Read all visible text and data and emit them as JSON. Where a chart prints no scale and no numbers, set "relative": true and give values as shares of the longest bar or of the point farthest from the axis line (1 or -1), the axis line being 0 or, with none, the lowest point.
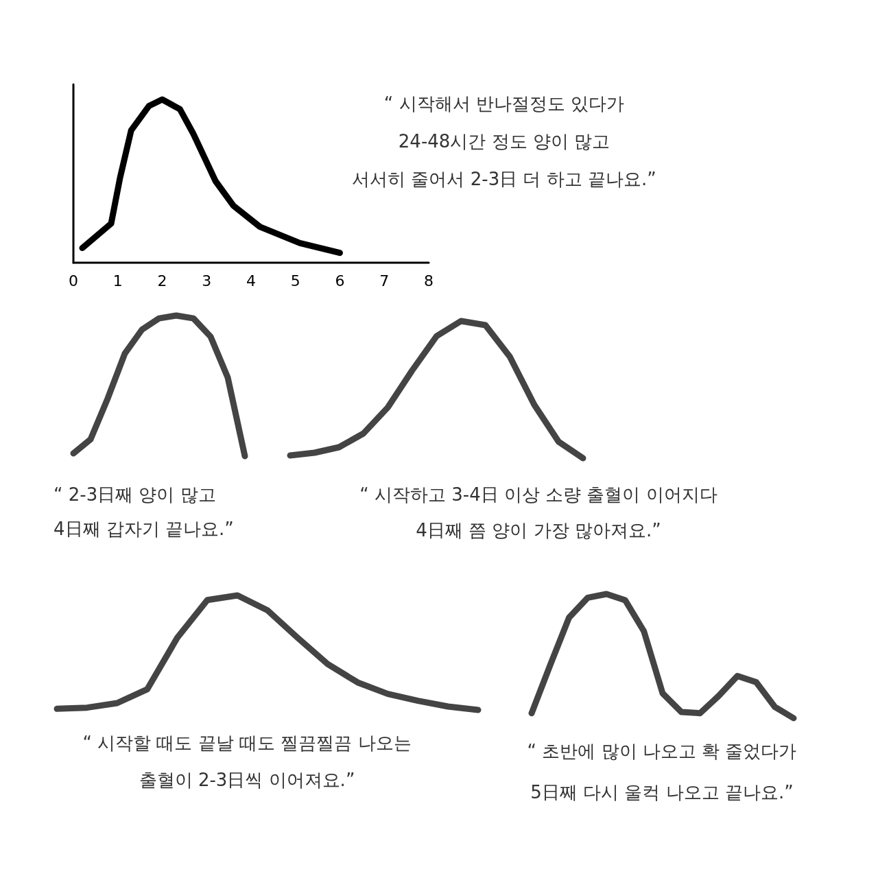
{
  "chart_data": [
    {
      "type": "line",
      "relative": true,
      "x": [
        0.2,
        0.85,
        1.05,
        1.3,
        1.7,
        2.0,
        2.4,
        2.7,
        3.2,
        3.6,
        4.2,
        5.1,
        6.0
      ],
      "xlim": [
        0,
        8
      ],
      "xticks": [
        0,
        1,
        2,
        3,
        4,
        5,
        6,
        7,
        8
      ],
      "tick_labels": "x",
      "series": [
        {
          "color": "#000000",
          "values": [
            0.09,
            0.24,
            0.52,
            0.81,
            0.96,
            1.0,
            0.94,
            0.79,
            0.5,
            0.35,
            0.22,
            0.12,
            0.06
          ]
        }
      ],
      "annotations": [
        "“ 시작해서 반나절정도 있다가",
        "24-48시간 정도 양이 많고",
        "서서히 줄어서 2-3日 더 하고 끝나요.”"
      ]
    },
    {
      "type": "line",
      "relative": true,
      "tick_labels": false,
      "categories": [
        null,
        null,
        null,
        null,
        null,
        null,
        null,
        null,
        null,
        null,
        null
      ],
      "series": [
        {
          "color": "#444444",
          "values": [
            0.02,
            0.12,
            0.41,
            0.73,
            0.9,
            0.98,
            1.0,
            0.98,
            0.85,
            0.56,
            0
          ]
        }
      ],
      "annotations": [
        "“ 2-3日째 양이 많고",
        "4日째 갑자기 끝나요.”"
      ]
    },
    {
      "type": "line",
      "relative": true,
      "tick_labels": false,
      "categories": [
        null,
        null,
        null,
        null,
        null,
        null,
        null,
        null,
        null,
        null,
        null,
        null,
        null
      ],
      "series": [
        {
          "color": "#444444",
          "values": [
            0.02,
            0.04,
            0.08,
            0.18,
            0.37,
            0.64,
            0.89,
            1.0,
            0.97,
            0.74,
            0.39,
            0.12,
            0
          ]
        }
      ],
      "annotations": [
        "“ 시작하고 3-4日 이상 소량 출혈이 이어지다",
        "4日째 쯤 양이 가장 많아져요.”"
      ]
    },
    {
      "type": "line",
      "relative": true,
      "tick_labels": false,
      "categories": [
        null,
        null,
        null,
        null,
        null,
        null,
        null,
        null,
        null,
        null,
        null,
        null,
        null,
        null,
        null
      ],
      "series": [
        {
          "color": "#444444",
          "values": [
            0.01,
            0.02,
            0.06,
            0.18,
            0.63,
            0.96,
            1.0,
            0.87,
            0.63,
            0.4,
            0.24,
            0.14,
            0.08,
            0.03,
            0
          ]
        }
      ],
      "annotations": [
        "“ 시작할 때도 끝날 때도 찔끔찔끔 나오는",
        "출혈이 2-3日씩 이어져요.”"
      ]
    },
    {
      "type": "line",
      "relative": true,
      "tick_labels": false,
      "categories": [
        null,
        null,
        null,
        null,
        null,
        null,
        null,
        null,
        null,
        null,
        null,
        null,
        null,
        null,
        null
      ],
      "series": [
        {
          "color": "#444444",
          "values": [
            0.04,
            0.43,
            0.81,
            0.97,
            1.0,
            0.95,
            0.7,
            0.2,
            0.05,
            0.04,
            0.18,
            0.34,
            0.29,
            0.09,
            0
          ]
        }
      ],
      "annotations": [
        "“ 초반에 많이 나오고 확 줄었다가",
        "5日째 다시 울컥 나오고 끝나요.”"
      ]
    }
  ]
}
